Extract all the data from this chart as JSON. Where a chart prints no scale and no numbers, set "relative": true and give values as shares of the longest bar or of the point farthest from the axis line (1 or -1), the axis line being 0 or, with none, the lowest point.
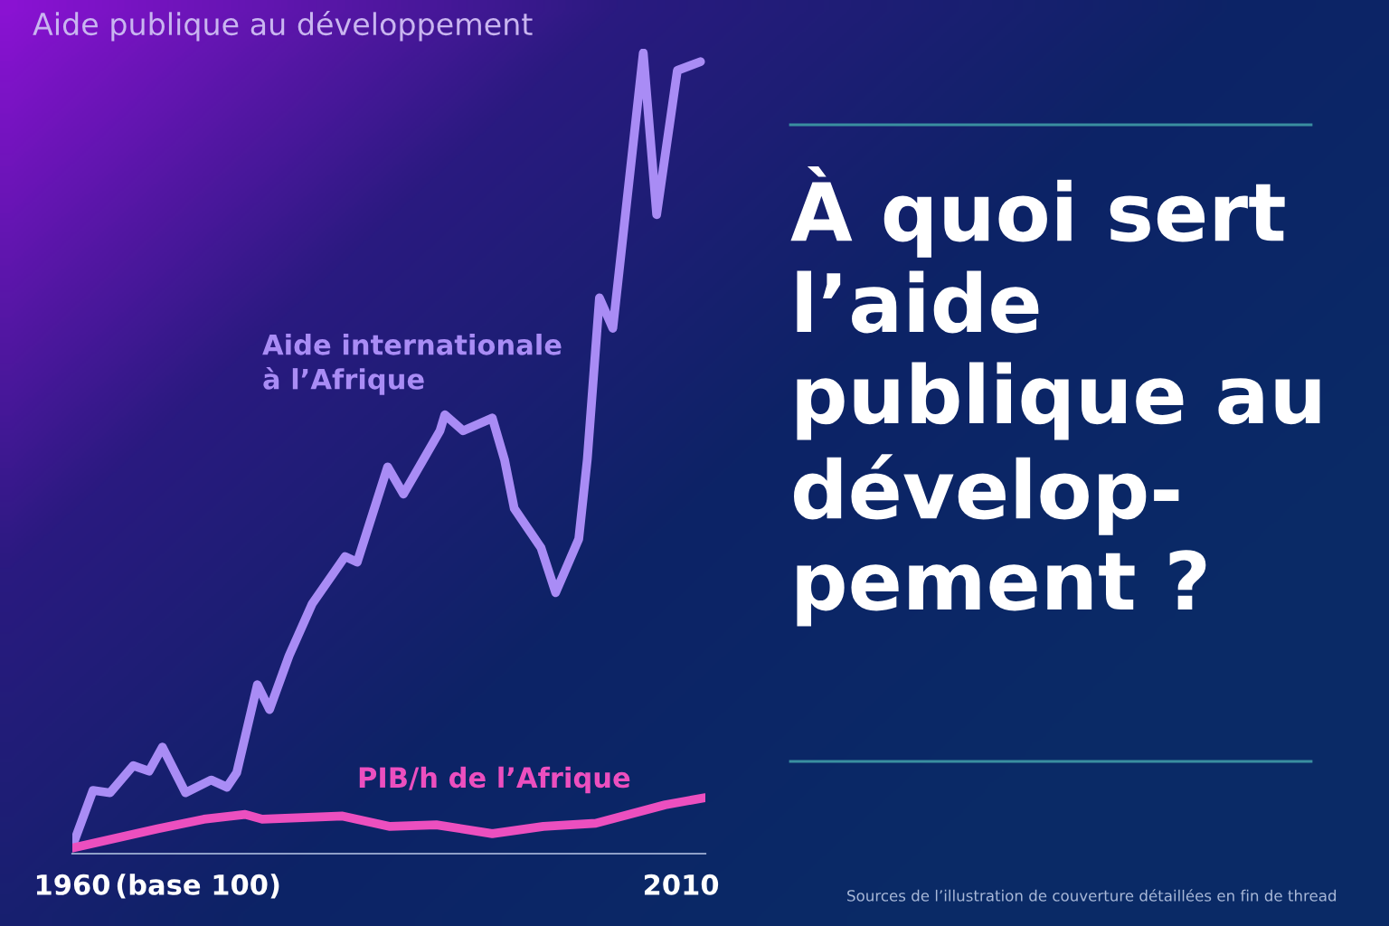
{
  "chart_data": {
    "type": "line",
    "title": "Aide publique au développement",
    "relative": true,
    "tick_labels": "x",
    "xlim": [
      1960,
      2012
    ],
    "xticks": [
      1960,
      2010
    ],
    "annotations": [
      "À quoi sert\nl’aide\npublique au\ndévelop-\npement ?",
      "Sources de l’illustration de couverture détaillées en fin de thread",
      "(base 100)"
    ],
    "series": [
      {
        "name": "Aide internationale\nà l’Afrique",
        "color": "#a98cf5",
        "x": [
          1960,
          1961.7,
          1963.1,
          1965.0,
          1966.3,
          1967.4,
          1969.3,
          1971.4,
          1972.7,
          1973.5,
          1975.2,
          1976.2,
          1977.8,
          1979.7,
          1982.4,
          1983.4,
          1985.9,
          1987.2,
          1990.2,
          1990.6,
          1992.1,
          1994.5,
          1995.5,
          1996.3,
          1998.5,
          1999.7,
          2001.6,
          2002.3,
          2003.3,
          2004.4,
          2006.9,
          2008.0,
          2009.7,
          2011.6
        ],
        "values": [
          0.009,
          0.079,
          0.076,
          0.11,
          0.103,
          0.133,
          0.076,
          0.092,
          0.083,
          0.101,
          0.211,
          0.18,
          0.247,
          0.312,
          0.371,
          0.364,
          0.483,
          0.449,
          0.528,
          0.548,
          0.528,
          0.544,
          0.492,
          0.431,
          0.382,
          0.326,
          0.393,
          0.492,
          0.694,
          0.656,
          1.0,
          0.798,
          0.978,
          0.989
        ]
      },
      {
        "name": "PIB/h de l’Afrique",
        "color": "#ec4fbf",
        "x": [
          1960,
          1967.0,
          1970.8,
          1974.2,
          1975.6,
          1982.2,
          1986.1,
          1989.9,
          1994.5,
          1998.7,
          2003.0,
          2008.7,
          2012.0
        ],
        "values": [
          0.007,
          0.031,
          0.043,
          0.049,
          0.043,
          0.047,
          0.034,
          0.036,
          0.025,
          0.034,
          0.038,
          0.061,
          0.07
        ]
      }
    ]
  }
}
